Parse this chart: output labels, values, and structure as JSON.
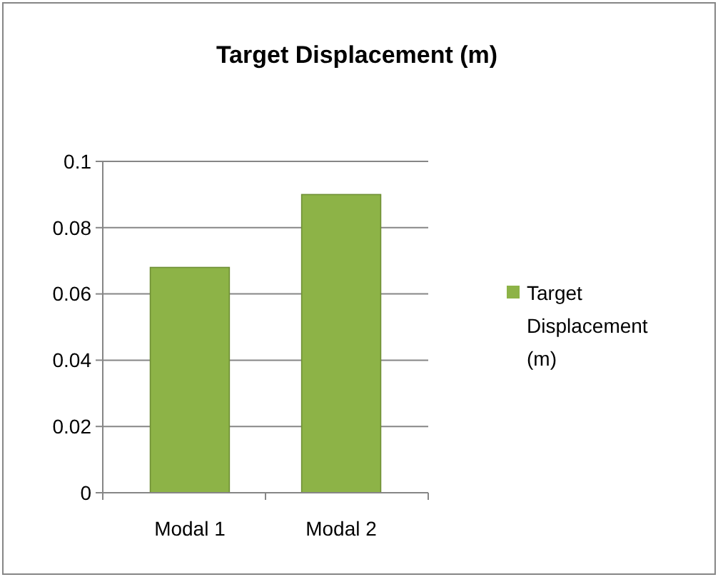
{
  "chart_data": {
    "type": "bar",
    "title": "Target Displacement (m)",
    "categories": [
      "Modal 1",
      "Modal 2"
    ],
    "series": [
      {
        "name": "Target Displacement (m)",
        "color": "#8db347",
        "values": [
          0.068,
          0.09
        ]
      }
    ],
    "ylim": [
      0,
      0.1
    ],
    "yticks": [
      0,
      0.02,
      0.04,
      0.06,
      0.08,
      0.1
    ],
    "grid": "y",
    "legend": "right"
  }
}
